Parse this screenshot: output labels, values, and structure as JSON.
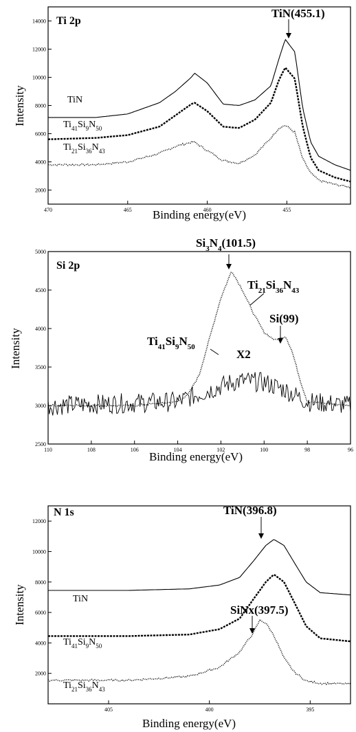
{
  "chart_data": [
    {
      "type": "line",
      "title": "Ti 2p",
      "xlabel": "Binding energy(eV)",
      "ylabel": "Intensity",
      "xlim": [
        470,
        451
      ],
      "ylim": [
        1000,
        15000
      ],
      "x_reversed": true,
      "xticks": [
        470,
        465,
        460,
        455
      ],
      "yticks": [
        2000,
        4000,
        6000,
        8000,
        10000,
        12000,
        14000
      ],
      "series": [
        {
          "name": "TiN",
          "style": "solid",
          "points": [
            [
              470,
              7150
            ],
            [
              467,
              7150
            ],
            [
              465,
              7400
            ],
            [
              463,
              8200
            ],
            [
              462,
              9000
            ],
            [
              461,
              10000
            ],
            [
              460.8,
              10300
            ],
            [
              460,
              9600
            ],
            [
              459,
              8100
            ],
            [
              458,
              8000
            ],
            [
              457,
              8400
            ],
            [
              456,
              9400
            ],
            [
              455.5,
              11300
            ],
            [
              455.1,
              12700
            ],
            [
              454.5,
              11800
            ],
            [
              454,
              7800
            ],
            [
              453.5,
              5400
            ],
            [
              453,
              4400
            ],
            [
              452,
              3800
            ],
            [
              451,
              3400
            ]
          ]
        },
        {
          "name_parts": [
            "Ti",
            "41",
            "Si",
            "9",
            "N",
            "50"
          ],
          "style": "dashed",
          "points": [
            [
              470,
              5600
            ],
            [
              467,
              5700
            ],
            [
              465,
              5900
            ],
            [
              463,
              6500
            ],
            [
              462,
              7300
            ],
            [
              461,
              8100
            ],
            [
              460.8,
              8200
            ],
            [
              460,
              7600
            ],
            [
              459,
              6500
            ],
            [
              458,
              6400
            ],
            [
              457,
              7000
            ],
            [
              456,
              8200
            ],
            [
              455.5,
              9800
            ],
            [
              455.1,
              10700
            ],
            [
              454.5,
              9900
            ],
            [
              454,
              6500
            ],
            [
              453.5,
              4300
            ],
            [
              453,
              3400
            ],
            [
              452,
              2900
            ],
            [
              451,
              2600
            ]
          ]
        },
        {
          "name_parts": [
            "Ti",
            "21",
            "Si",
            "36",
            "N",
            "43"
          ],
          "style": "dotted",
          "points": [
            [
              470,
              3800
            ],
            [
              467,
              3800
            ],
            [
              465,
              4000
            ],
            [
              463,
              4600
            ],
            [
              462,
              5100
            ],
            [
              461,
              5400
            ],
            [
              460.8,
              5400
            ],
            [
              460,
              4800
            ],
            [
              459,
              4100
            ],
            [
              458,
              3900
            ],
            [
              457,
              4500
            ],
            [
              456,
              5700
            ],
            [
              455.5,
              6400
            ],
            [
              455.1,
              6600
            ],
            [
              454.5,
              6100
            ],
            [
              454,
              4200
            ],
            [
              453.5,
              3200
            ],
            [
              453,
              2700
            ],
            [
              452,
              2400
            ],
            [
              451,
              2200
            ]
          ]
        }
      ],
      "annotations": [
        {
          "text": "TiN(455.1)",
          "x": 455.1
        }
      ]
    },
    {
      "type": "line",
      "title": "Si 2p",
      "xlabel": "Binding energy(eV)",
      "ylabel": "Intensity",
      "xlim": [
        110,
        96
      ],
      "ylim": [
        2500,
        5000
      ],
      "x_reversed": true,
      "xticks": [
        110,
        108,
        106,
        104,
        102,
        100,
        98,
        96
      ],
      "yticks": [
        2500,
        3000,
        3500,
        4000,
        4500,
        5000
      ],
      "series": [
        {
          "name_parts": [
            "Ti",
            "21",
            "Si",
            "36",
            "N",
            "43"
          ],
          "style": "dotted",
          "points": [
            [
              110,
              3000
            ],
            [
              106,
              3000
            ],
            [
              104,
              3050
            ],
            [
              103.5,
              3150
            ],
            [
              103,
              3400
            ],
            [
              102.5,
              3900
            ],
            [
              102,
              4400
            ],
            [
              101.5,
              4750
            ],
            [
              101,
              4500
            ],
            [
              100.5,
              4200
            ],
            [
              100,
              3950
            ],
            [
              99.5,
              3850
            ],
            [
              99,
              3900
            ],
            [
              98.7,
              3700
            ],
            [
              98.3,
              3300
            ],
            [
              98,
              3050
            ],
            [
              96,
              3000
            ]
          ]
        },
        {
          "name_parts": [
            "Ti",
            "41",
            "Si",
            "9",
            "N",
            "50"
          ],
          "style": "noisy",
          "points": [
            [
              110,
              3000
            ],
            [
              104,
              3050
            ],
            [
              103,
              3150
            ],
            [
              102,
              3250
            ],
            [
              101.5,
              3300
            ],
            [
              101,
              3320
            ],
            [
              100,
              3300
            ],
            [
              99,
              3200
            ],
            [
              98,
              3050
            ],
            [
              96,
              3000
            ]
          ]
        }
      ],
      "annotations": [
        {
          "text_parts": [
            "Si",
            "3",
            "N",
            "4",
            "(101.5)"
          ],
          "x": 101.5
        },
        {
          "text": "Si(99)",
          "x": 99
        },
        {
          "text": "X2"
        }
      ]
    },
    {
      "type": "line",
      "title": "N 1s",
      "xlabel": "Binding energy(eV)",
      "ylabel": "Intensity",
      "xlim": [
        408,
        393
      ],
      "ylim": [
        0,
        13000
      ],
      "x_reversed": true,
      "xticks": [
        405,
        400,
        395
      ],
      "yticks": [
        2000,
        4000,
        6000,
        8000,
        10000,
        12000
      ],
      "series": [
        {
          "name": "TiN",
          "style": "solid",
          "points": [
            [
              408,
              7450
            ],
            [
              404,
              7450
            ],
            [
              401,
              7550
            ],
            [
              399.5,
              7800
            ],
            [
              398.5,
              8300
            ],
            [
              397.8,
              9400
            ],
            [
              397.2,
              10400
            ],
            [
              396.8,
              10800
            ],
            [
              396.3,
              10400
            ],
            [
              395.8,
              9300
            ],
            [
              395.2,
              8000
            ],
            [
              394.5,
              7300
            ],
            [
              393,
              7150
            ]
          ]
        },
        {
          "name_parts": [
            "Ti",
            "41",
            "Si",
            "9",
            "N",
            "50"
          ],
          "style": "dashed",
          "points": [
            [
              408,
              4450
            ],
            [
              404,
              4450
            ],
            [
              401,
              4550
            ],
            [
              399.5,
              4900
            ],
            [
              398.5,
              5600
            ],
            [
              397.8,
              6900
            ],
            [
              397.2,
              8000
            ],
            [
              396.8,
              8500
            ],
            [
              396.3,
              8000
            ],
            [
              395.8,
              6700
            ],
            [
              395.2,
              5100
            ],
            [
              394.5,
              4300
            ],
            [
              393,
              4100
            ]
          ]
        },
        {
          "name_parts": [
            "Ti",
            "21",
            "Si",
            "36",
            "N",
            "43"
          ],
          "style": "dotted",
          "points": [
            [
              408,
              1550
            ],
            [
              404,
              1550
            ],
            [
              401,
              1800
            ],
            [
              399.5,
              2400
            ],
            [
              398.5,
              3400
            ],
            [
              397.8,
              4700
            ],
            [
              397.5,
              5500
            ],
            [
              397.2,
              5300
            ],
            [
              396.8,
              4500
            ],
            [
              396.3,
              3000
            ],
            [
              395.8,
              2100
            ],
            [
              395.2,
              1500
            ],
            [
              394.5,
              1350
            ],
            [
              393,
              1300
            ]
          ]
        }
      ],
      "annotations": [
        {
          "text": "TiN(396.8)",
          "x": 396.8
        },
        {
          "text": "SiNx(397.5)",
          "x": 397.5
        }
      ]
    }
  ]
}
